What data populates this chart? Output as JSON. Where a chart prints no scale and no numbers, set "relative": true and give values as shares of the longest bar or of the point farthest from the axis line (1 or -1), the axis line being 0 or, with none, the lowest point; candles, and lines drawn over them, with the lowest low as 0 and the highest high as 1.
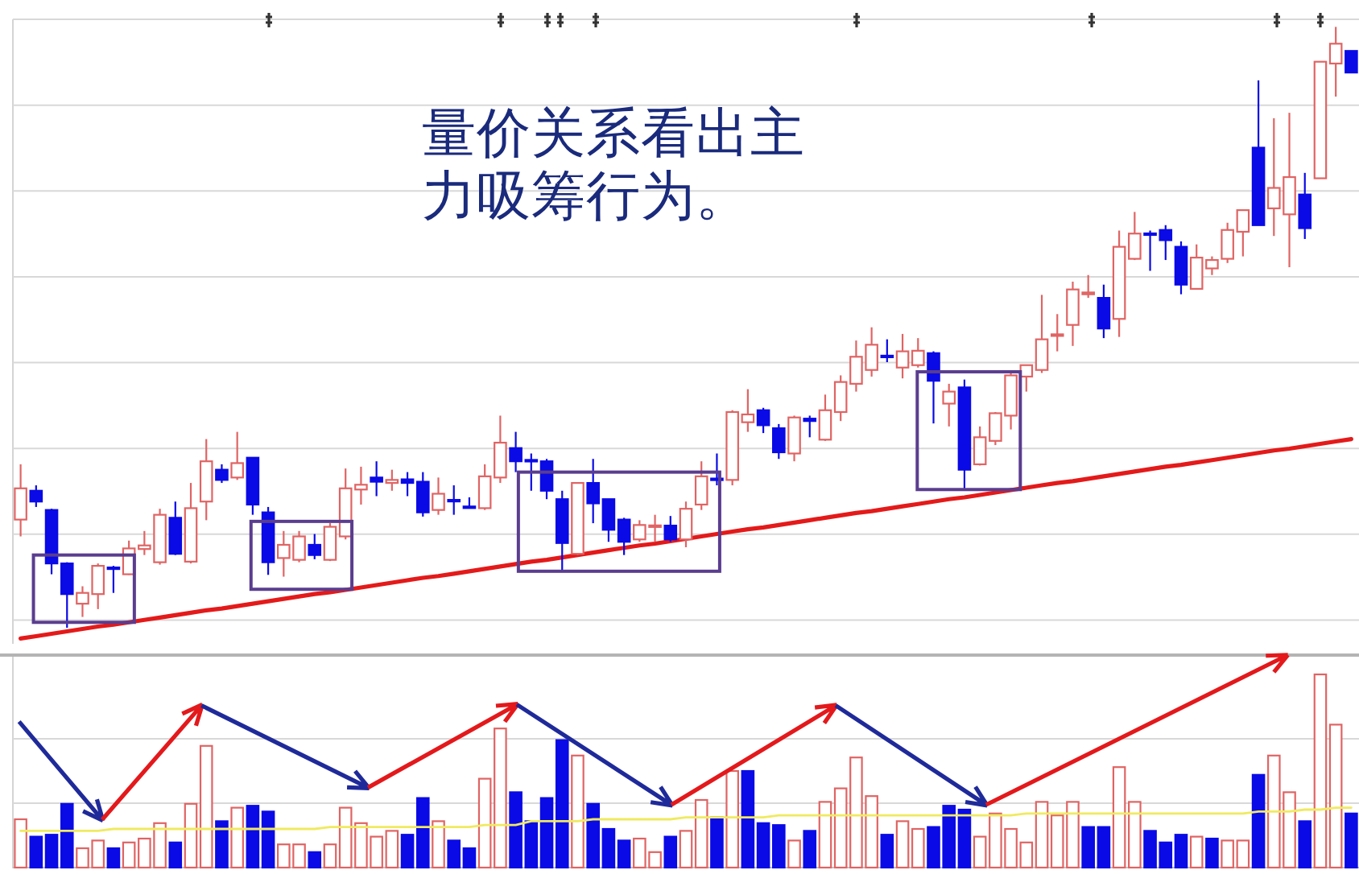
{
  "chart_data": [
    {
      "type": "candlestick",
      "relative": true,
      "grid": true,
      "annotations": [
        "量价关系看出主力吸筹行为。"
      ],
      "categories": [
        null,
        null,
        null,
        null,
        null,
        null,
        null,
        null,
        null,
        null,
        null,
        null,
        null,
        null,
        null,
        null,
        null,
        null,
        null,
        null,
        null,
        null,
        null,
        null,
        null,
        null,
        null,
        null,
        null,
        null,
        null,
        null,
        null,
        null,
        null,
        null,
        null,
        null,
        null,
        null,
        null,
        null,
        null,
        null,
        null,
        null,
        null,
        null,
        null,
        null,
        null,
        null,
        null,
        null,
        null,
        null,
        null,
        null,
        null,
        null,
        null,
        null,
        null,
        null,
        null,
        null,
        null,
        null,
        null,
        null,
        null,
        null,
        null,
        null,
        null,
        null,
        null,
        null,
        null,
        null,
        null,
        null,
        null,
        null,
        null,
        null,
        null
      ],
      "ohlc": [
        [
          0.18,
          0.272,
          0.152,
          0.232
        ],
        [
          0.228,
          0.237,
          0.201,
          0.21
        ],
        [
          0.196,
          0.198,
          0.089,
          0.107
        ],
        [
          0.107,
          0.109,
          0,
          0.056
        ],
        [
          0.04,
          0.069,
          0.018,
          0.058
        ],
        [
          0.056,
          0.107,
          0.031,
          0.103
        ],
        [
          0.1,
          0.103,
          0.058,
          0.098
        ],
        [
          0.089,
          0.145,
          0.088,
          0.132
        ],
        [
          0.131,
          0.161,
          0.121,
          0.137
        ],
        [
          0.109,
          0.198,
          0.105,
          0.188
        ],
        [
          0.183,
          0.21,
          0.121,
          0.123
        ],
        [
          0.11,
          0.241,
          0.107,
          0.199
        ],
        [
          0.21,
          0.314,
          0.179,
          0.277
        ],
        [
          0.263,
          0.272,
          0.241,
          0.246
        ],
        [
          0.25,
          0.326,
          0.246,
          0.274
        ],
        [
          0.283,
          0.283,
          0.188,
          0.205
        ],
        [
          0.192,
          0.201,
          0.088,
          0.109
        ],
        [
          0.116,
          0.161,
          0.085,
          0.138
        ],
        [
          0.113,
          0.161,
          0.109,
          0.152
        ],
        [
          0.138,
          0.156,
          0.114,
          0.121
        ],
        [
          0.113,
          0.174,
          0.111,
          0.168
        ],
        [
          0.152,
          0.265,
          0.147,
          0.232
        ],
        [
          0.23,
          0.268,
          0.205,
          0.238
        ],
        [
          0.25,
          0.277,
          0.219,
          0.243
        ],
        [
          0.241,
          0.263,
          0.228,
          0.246
        ],
        [
          0.247,
          0.259,
          0.219,
          0.241
        ],
        [
          0.243,
          0.259,
          0.185,
          0.192
        ],
        [
          0.196,
          0.25,
          0.188,
          0.223
        ],
        [
          0.212,
          0.237,
          0.188,
          0.211
        ],
        [
          0.201,
          0.217,
          0.2,
          0.2
        ],
        [
          0.199,
          0.272,
          0.196,
          0.252
        ],
        [
          0.25,
          0.353,
          0.241,
          0.308
        ],
        [
          0.299,
          0.326,
          0.259,
          0.277
        ],
        [
          0.279,
          0.29,
          0.228,
          0.277
        ],
        [
          0.277,
          0.281,
          0.214,
          0.228
        ],
        [
          0.214,
          0.228,
          0.094,
          0.141
        ],
        [
          0.123,
          0.241,
          0.121,
          0.241
        ],
        [
          0.241,
          0.281,
          0.174,
          0.207
        ],
        [
          0.214,
          0.214,
          0.143,
          0.163
        ],
        [
          0.18,
          0.183,
          0.121,
          0.143
        ],
        [
          0.147,
          0.179,
          0.143,
          0.171
        ],
        [
          0.168,
          0.188,
          0.143,
          0.17
        ],
        [
          0.17,
          0.186,
          0.143,
          0.147
        ],
        [
          0.147,
          0.21,
          0.134,
          0.198
        ],
        [
          0.205,
          0.277,
          0.196,
          0.252
        ],
        [
          0.248,
          0.29,
          0.237,
          0.246
        ],
        [
          0.246,
          0.362,
          0.237,
          0.359
        ],
        [
          0.342,
          0.397,
          0.326,
          0.355
        ],
        [
          0.362,
          0.366,
          0.324,
          0.337
        ],
        [
          0.332,
          0.339,
          0.281,
          0.292
        ],
        [
          0.29,
          0.353,
          0.277,
          0.35
        ],
        [
          0.348,
          0.353,
          0.317,
          0.344
        ],
        [
          0.313,
          0.388,
          0.311,
          0.362
        ],
        [
          0.359,
          0.42,
          0.344,
          0.409
        ],
        [
          0.406,
          0.478,
          0.393,
          0.451
        ],
        [
          0.429,
          0.5,
          0.418,
          0.471
        ],
        [
          0.452,
          0.48,
          0.442,
          0.451
        ],
        [
          0.433,
          0.489,
          0.415,
          0.46
        ],
        [
          0.437,
          0.482,
          0.433,
          0.461
        ],
        [
          0.457,
          0.46,
          0.34,
          0.411
        ],
        [
          0.373,
          0.406,
          0.335,
          0.393
        ],
        [
          0.4,
          0.413,
          0.232,
          0.263
        ],
        [
          0.272,
          0.335,
          0.27,
          0.317
        ],
        [
          0.311,
          0.359,
          0.304,
          0.357
        ],
        [
          0.353,
          0.424,
          0.33,
          0.42
        ],
        [
          0.418,
          0.437,
          0.393,
          0.437
        ],
        [
          0.429,
          0.554,
          0.424,
          0.48
        ],
        [
          0.486,
          0.522,
          0.46,
          0.488
        ],
        [
          0.504,
          0.576,
          0.469,
          0.563
        ],
        [
          0.555,
          0.587,
          0.549,
          0.558
        ],
        [
          0.549,
          0.571,
          0.482,
          0.498
        ],
        [
          0.514,
          0.661,
          0.484,
          0.634
        ],
        [
          0.614,
          0.692,
          0.612,
          0.656
        ],
        [
          0.656,
          0.661,
          0.594,
          0.654
        ],
        [
          0.662,
          0.67,
          0.612,
          0.645
        ],
        [
          0.634,
          0.643,
          0.555,
          0.571
        ],
        [
          0.564,
          0.638,
          0.563,
          0.616
        ],
        [
          0.598,
          0.618,
          0.587,
          0.612
        ],
        [
          0.614,
          0.674,
          0.607,
          0.662
        ],
        [
          0.659,
          0.696,
          0.618,
          0.695
        ],
        [
          0.799,
          0.911,
          0.67,
          0.67
        ],
        [
          0.698,
          0.848,
          0.652,
          0.732
        ],
        [
          0.688,
          0.857,
          0.6,
          0.75
        ],
        [
          0.721,
          0.757,
          0.647,
          0.665
        ],
        [
          0.748,
          0.942,
          0.748,
          0.942
        ],
        [
          0.939,
          1,
          0.884,
          0.972
        ],
        [
          0.96,
          0.96,
          0.924,
          0.924
        ]
      ],
      "colors": [
        "#e06464",
        "#0a0ae6",
        "#0a0ae6",
        "#0a0ae6",
        "#e06464",
        "#e06464",
        "#0a0ae6",
        "#e06464",
        "#e06464",
        "#e06464",
        "#0a0ae6",
        "#e06464",
        "#e06464",
        "#0a0ae6",
        "#e06464",
        "#0a0ae6",
        "#0a0ae6",
        "#e06464",
        "#e06464",
        "#0a0ae6",
        "#e06464",
        "#e06464",
        "#e06464",
        "#0a0ae6",
        "#e06464",
        "#0a0ae6",
        "#0a0ae6",
        "#e06464",
        "#0a0ae6",
        "#0a0ae6",
        "#e06464",
        "#e06464",
        "#0a0ae6",
        "#0a0ae6",
        "#0a0ae6",
        "#0a0ae6",
        "#e06464",
        "#0a0ae6",
        "#0a0ae6",
        "#0a0ae6",
        "#e06464",
        "#e06464",
        "#0a0ae6",
        "#e06464",
        "#e06464",
        "#0a0ae6",
        "#e06464",
        "#e06464",
        "#0a0ae6",
        "#0a0ae6",
        "#e06464",
        "#0a0ae6",
        "#e06464",
        "#e06464",
        "#e06464",
        "#e06464",
        "#0a0ae6",
        "#e06464",
        "#e06464",
        "#0a0ae6",
        "#e06464",
        "#0a0ae6",
        "#e06464",
        "#e06464",
        "#e06464",
        "#e06464",
        "#e06464",
        "#e06464",
        "#e06464",
        "#e06464",
        "#0a0ae6",
        "#e06464",
        "#e06464",
        "#0a0ae6",
        "#0a0ae6",
        "#0a0ae6",
        "#e06464",
        "#e06464",
        "#e06464",
        "#e06464",
        "#0a0ae6",
        "#e06464",
        "#e06464",
        "#0a0ae6",
        "#e06464",
        "#e06464",
        "#0a0ae6"
      ],
      "series": [
        {
          "type": "line",
          "color": "#e41a1a",
          "values": [
            -0.018,
            -0.014,
            -0.01,
            -0.006,
            -0.002,
            0.002,
            0.005,
            0.009,
            0.013,
            0.017,
            0.021,
            0.025,
            0.029,
            0.032,
            0.036,
            0.04,
            0.044,
            0.048,
            0.052,
            0.056,
            0.059,
            0.063,
            0.067,
            0.071,
            0.075,
            0.079,
            0.083,
            0.086,
            0.09,
            0.094,
            0.098,
            0.102,
            0.106,
            0.11,
            0.113,
            0.117,
            0.121,
            0.125,
            0.129,
            0.133,
            0.137,
            0.14,
            0.144,
            0.148,
            0.152,
            0.156,
            0.16,
            0.164,
            0.167,
            0.171,
            0.175,
            0.179,
            0.183,
            0.187,
            0.191,
            0.194,
            0.198,
            0.202,
            0.206,
            0.21,
            0.214,
            0.217,
            0.221,
            0.225,
            0.229,
            0.233,
            0.237,
            0.241,
            0.244,
            0.248,
            0.252,
            0.256,
            0.26,
            0.264,
            0.268,
            0.271,
            0.275,
            0.279,
            0.283,
            0.287,
            0.291,
            0.295,
            0.298,
            0.302,
            0.306,
            0.31,
            0.314
          ]
        }
      ]
    },
    {
      "type": "bar",
      "relative": true,
      "ref_lines": [
        {
          "axis": "y",
          "value": 0.333,
          "color": "#d8d8d8"
        },
        {
          "axis": "y",
          "value": 0.667,
          "color": "#d8d8d8"
        }
      ],
      "categories": [
        null,
        null,
        null,
        null,
        null,
        null,
        null,
        null,
        null,
        null,
        null,
        null,
        null,
        null,
        null,
        null,
        null,
        null,
        null,
        null,
        null,
        null,
        null,
        null,
        null,
        null,
        null,
        null,
        null,
        null,
        null,
        null,
        null,
        null,
        null,
        null,
        null,
        null,
        null,
        null,
        null,
        null,
        null,
        null,
        null,
        null,
        null,
        null,
        null,
        null,
        null,
        null,
        null,
        null,
        null,
        null,
        null,
        null,
        null,
        null,
        null,
        null,
        null,
        null,
        null,
        null,
        null,
        null,
        null,
        null,
        null,
        null,
        null,
        null,
        null,
        null,
        null,
        null,
        null,
        null,
        null,
        null,
        null,
        null,
        null,
        null,
        null
      ],
      "series": [
        {
          "values": [
            0.25,
            0.16,
            0.17,
            0.33,
            0.1,
            0.14,
            0.1,
            0.13,
            0.15,
            0.23,
            0.13,
            0.33,
            0.63,
            0.24,
            0.31,
            0.32,
            0.29,
            0.12,
            0.12,
            0.08,
            0.12,
            0.31,
            0.23,
            0.16,
            0.19,
            0.17,
            0.36,
            0.24,
            0.14,
            0.1,
            0.46,
            0.72,
            0.39,
            0.24,
            0.36,
            0.66,
            0.58,
            0.33,
            0.2,
            0.14,
            0.15,
            0.08,
            0.16,
            0.19,
            0.35,
            0.26,
            0.5,
            0.5,
            0.23,
            0.22,
            0.14,
            0.19,
            0.34,
            0.41,
            0.57,
            0.37,
            0.17,
            0.24,
            0.2,
            0.21,
            0.32,
            0.3,
            0.16,
            0.28,
            0.2,
            0.13,
            0.34,
            0.27,
            0.34,
            0.21,
            0.21,
            0.52,
            0.34,
            0.19,
            0.13,
            0.17,
            0.16,
            0.15,
            0.14,
            0.14,
            0.48,
            0.58,
            0.39,
            0.24,
            1,
            0.74,
            0.28
          ],
          "colors": [
            "#e06464",
            "#0a0ae6",
            "#0a0ae6",
            "#0a0ae6",
            "#e06464",
            "#e06464",
            "#0a0ae6",
            "#e06464",
            "#e06464",
            "#e06464",
            "#0a0ae6",
            "#e06464",
            "#e06464",
            "#0a0ae6",
            "#e06464",
            "#0a0ae6",
            "#0a0ae6",
            "#e06464",
            "#e06464",
            "#0a0ae6",
            "#e06464",
            "#e06464",
            "#e06464",
            "#e06464",
            "#e06464",
            "#0a0ae6",
            "#0a0ae6",
            "#e06464",
            "#0a0ae6",
            "#0a0ae6",
            "#e06464",
            "#e06464",
            "#0a0ae6",
            "#0a0ae6",
            "#0a0ae6",
            "#0a0ae6",
            "#e06464",
            "#0a0ae6",
            "#0a0ae6",
            "#0a0ae6",
            "#e06464",
            "#e06464",
            "#0a0ae6",
            "#e06464",
            "#e06464",
            "#0a0ae6",
            "#e06464",
            "#0a0ae6",
            "#0a0ae6",
            "#0a0ae6",
            "#e06464",
            "#0a0ae6",
            "#e06464",
            "#e06464",
            "#e06464",
            "#e06464",
            "#0a0ae6",
            "#e06464",
            "#e06464",
            "#0a0ae6",
            "#0a0ae6",
            "#0a0ae6",
            "#e06464",
            "#e06464",
            "#e06464",
            "#e06464",
            "#e06464",
            "#e06464",
            "#e06464",
            "#0a0ae6",
            "#0a0ae6",
            "#e06464",
            "#e06464",
            "#0a0ae6",
            "#0a0ae6",
            "#0a0ae6",
            "#e06464",
            "#0a0ae6",
            "#e06464",
            "#e06464",
            "#0a0ae6",
            "#e06464",
            "#e06464",
            "#0a0ae6",
            "#e06464",
            "#e06464",
            "#0a0ae6"
          ]
        },
        {
          "type": "line",
          "color": "#f0ea60",
          "values": [
            0.19,
            0.19,
            0.19,
            0.19,
            0.19,
            0.19,
            0.2,
            0.2,
            0.2,
            0.2,
            0.2,
            0.2,
            0.2,
            0.2,
            0.2,
            0.2,
            0.2,
            0.2,
            0.2,
            0.2,
            0.21,
            0.21,
            0.21,
            0.21,
            0.21,
            0.21,
            0.21,
            0.21,
            0.21,
            0.21,
            0.22,
            0.22,
            0.22,
            0.24,
            0.24,
            0.24,
            0.24,
            0.25,
            0.25,
            0.25,
            0.25,
            0.25,
            0.25,
            0.26,
            0.26,
            0.26,
            0.26,
            0.26,
            0.26,
            0.27,
            0.27,
            0.27,
            0.27,
            0.27,
            0.27,
            0.27,
            0.27,
            0.27,
            0.27,
            0.27,
            0.27,
            0.27,
            0.27,
            0.27,
            0.27,
            0.28,
            0.28,
            0.28,
            0.28,
            0.28,
            0.28,
            0.28,
            0.28,
            0.28,
            0.28,
            0.28,
            0.28,
            0.28,
            0.28,
            0.28,
            0.29,
            0.29,
            0.29,
            0.3,
            0.3,
            0.31,
            0.31
          ]
        }
      ]
    }
  ]
}
